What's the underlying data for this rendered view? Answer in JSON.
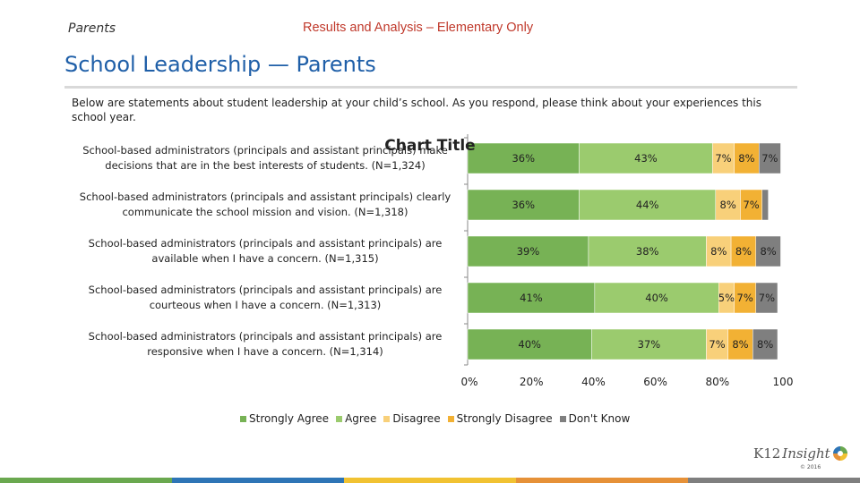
{
  "header": {
    "section_label": "Parents",
    "subtitle": "Results and Analysis – Elementary Only"
  },
  "page": {
    "title": "School Leadership — Parents",
    "intro": "Below are statements about student leadership at your child’s school. As you respond, please think about your experiences this school year."
  },
  "chart_data": {
    "type": "bar",
    "orientation": "horizontal",
    "stacked": true,
    "title": "Chart Title",
    "categories": [
      "School-based administrators (principals and assistant principals) make decisions that are in the best interests of students. (N=1,324)",
      "School-based administrators (principals and assistant principals) clearly communicate the school mission and vision. (N=1,318)",
      "School-based administrators (principals and assistant principals) are available when I have a concern. (N=1,315)",
      "School-based administrators (principals and assistant principals) are courteous when I have a concern. (N=1,313)",
      "School-based administrators (principals and assistant principals) are responsive when I have a concern. (N=1,314)"
    ],
    "category_lines": [
      [
        "School-based administrators (principals and assistant principals) make",
        "decisions that are in the best interests of students. (N=1,324)"
      ],
      [
        "School-based administrators (principals and assistant principals) clearly",
        "communicate the school mission and vision. (N=1,318)"
      ],
      [
        "School-based administrators (principals and assistant principals) are",
        "available when I have a concern. (N=1,315)"
      ],
      [
        "School-based administrators (principals and assistant principals) are",
        "courteous when I have a concern. (N=1,313)"
      ],
      [
        "School-based administrators (principals and assistant principals) are",
        "responsive when I have a concern. (N=1,314)"
      ]
    ],
    "series": [
      {
        "name": "Strongly Agree",
        "color": "#77b255",
        "values": [
          36,
          36,
          39,
          41,
          40
        ],
        "labels": [
          "36%",
          "36%",
          "39%",
          "41%",
          "40%"
        ]
      },
      {
        "name": "Agree",
        "color": "#9bcb6e",
        "values": [
          43,
          44,
          38,
          40,
          37
        ],
        "labels": [
          "43%",
          "44%",
          "38%",
          "40%",
          "37%"
        ]
      },
      {
        "name": "Disagree",
        "color": "#f8d07a",
        "values": [
          7,
          8,
          8,
          5,
          7
        ],
        "labels": [
          "7%",
          "8%",
          "8%",
          "5%",
          "7%"
        ]
      },
      {
        "name": "Strongly Disagree",
        "color": "#f2b134",
        "values": [
          8,
          7,
          8,
          7,
          8
        ],
        "labels": [
          "8%",
          "7%",
          "8%",
          "7%",
          "8%"
        ]
      },
      {
        "name": "Don't Know",
        "color": "#7f7f7f",
        "values": [
          7,
          2,
          8,
          7,
          8
        ],
        "labels": [
          "7%",
          "",
          "8%",
          "7%",
          "8%"
        ]
      }
    ],
    "xlim": [
      0,
      100
    ],
    "x_ticks": [
      "0%",
      "20%",
      "40%",
      "60%",
      "80%",
      "100"
    ],
    "legend_position": "bottom",
    "grid": false
  },
  "branding": {
    "logo_k12": "K12",
    "logo_insight": "Insight",
    "copyright": "© 2016",
    "band_colors": [
      "#6aa84f",
      "#2e75b6",
      "#f1c232",
      "#e69138",
      "#7f7f7f"
    ]
  }
}
